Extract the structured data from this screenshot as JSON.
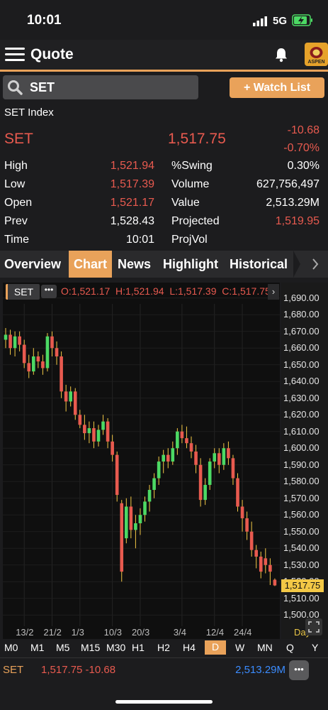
{
  "status_bar": {
    "time": "10:01",
    "network": "5G"
  },
  "header": {
    "title": "Quote",
    "logo_text": "ASPEN"
  },
  "search": {
    "value": "SET"
  },
  "watch_button": {
    "label": "+ Watch List"
  },
  "index_name": "SET Index",
  "quote": {
    "symbol": "SET",
    "last": "1,517.75",
    "change": "-10.68",
    "change_pct": "-0.70%"
  },
  "stats": {
    "high_label": "High",
    "high": "1,521.94",
    "low_label": "Low",
    "low": "1,517.39",
    "open_label": "Open",
    "open": "1,521.17",
    "prev_label": "Prev",
    "prev": "1,528.43",
    "time_label": "Time",
    "time": "10:01",
    "swing_label": "%Swing",
    "swing": "0.30%",
    "volume_label": "Volume",
    "volume": "627,756,497",
    "value_label": "Value",
    "value": "2,513.29M",
    "projected_label": "Projected",
    "projected": "1,519.95",
    "projvol_label": "ProjVol"
  },
  "tabs": [
    "Overview",
    "Chart",
    "News",
    "Highlight",
    "Historical"
  ],
  "chart_legend": {
    "symbol": "SET",
    "ohlc": "O:1,521.17  H:1,521.94  L:1,517.39  C:1,517.75"
  },
  "chart_data": {
    "type": "candlestick",
    "ylim": [
      1495,
      1695
    ],
    "y_ticks": [
      "1,690.00",
      "1,680.00",
      "1,670.00",
      "1,660.00",
      "1,650.00",
      "1,640.00",
      "1,630.00",
      "1,620.00",
      "1,610.00",
      "1,600.00",
      "1,590.00",
      "1,580.00",
      "1,570.00",
      "1,560.00",
      "1,550.00",
      "1,540.00",
      "1,530.00",
      "1,520.00",
      "1,510.00",
      "1,500.00"
    ],
    "y_tick_values": [
      1690,
      1680,
      1670,
      1660,
      1650,
      1640,
      1630,
      1620,
      1610,
      1600,
      1590,
      1580,
      1570,
      1560,
      1550,
      1540,
      1530,
      1520,
      1510,
      1500
    ],
    "x_labels": [
      "13/2",
      "21/2",
      "1/3",
      "10/3",
      "20/3",
      "3/4",
      "12/4",
      "24/4",
      "Day"
    ],
    "x_label_index": [
      4,
      10,
      16,
      23,
      29,
      38,
      45,
      51,
      59
    ],
    "last_price_label": "1,517.75",
    "last_price": 1517.75,
    "candles": [
      {
        "o": 1665,
        "h": 1672,
        "l": 1660,
        "c": 1668
      },
      {
        "o": 1668,
        "h": 1671,
        "l": 1656,
        "c": 1660
      },
      {
        "o": 1660,
        "h": 1670,
        "l": 1655,
        "c": 1667
      },
      {
        "o": 1667,
        "h": 1670,
        "l": 1658,
        "c": 1662
      },
      {
        "o": 1662,
        "h": 1665,
        "l": 1648,
        "c": 1651
      },
      {
        "o": 1651,
        "h": 1656,
        "l": 1642,
        "c": 1646
      },
      {
        "o": 1646,
        "h": 1660,
        "l": 1644,
        "c": 1655
      },
      {
        "o": 1655,
        "h": 1658,
        "l": 1648,
        "c": 1652
      },
      {
        "o": 1652,
        "h": 1656,
        "l": 1644,
        "c": 1648
      },
      {
        "o": 1648,
        "h": 1669,
        "l": 1646,
        "c": 1667
      },
      {
        "o": 1667,
        "h": 1670,
        "l": 1655,
        "c": 1660
      },
      {
        "o": 1660,
        "h": 1664,
        "l": 1650,
        "c": 1655
      },
      {
        "o": 1655,
        "h": 1658,
        "l": 1630,
        "c": 1634
      },
      {
        "o": 1634,
        "h": 1638,
        "l": 1622,
        "c": 1628
      },
      {
        "o": 1628,
        "h": 1637,
        "l": 1625,
        "c": 1634
      },
      {
        "o": 1634,
        "h": 1636,
        "l": 1617,
        "c": 1620
      },
      {
        "o": 1620,
        "h": 1623,
        "l": 1612,
        "c": 1614
      },
      {
        "o": 1614,
        "h": 1620,
        "l": 1605,
        "c": 1609
      },
      {
        "o": 1609,
        "h": 1616,
        "l": 1603,
        "c": 1612
      },
      {
        "o": 1612,
        "h": 1616,
        "l": 1600,
        "c": 1604
      },
      {
        "o": 1604,
        "h": 1614,
        "l": 1601,
        "c": 1611
      },
      {
        "o": 1611,
        "h": 1620,
        "l": 1608,
        "c": 1616
      },
      {
        "o": 1616,
        "h": 1618,
        "l": 1600,
        "c": 1604
      },
      {
        "o": 1604,
        "h": 1608,
        "l": 1592,
        "c": 1596
      },
      {
        "o": 1596,
        "h": 1598,
        "l": 1568,
        "c": 1572
      },
      {
        "o": 1567,
        "h": 1569,
        "l": 1520,
        "c": 1526
      },
      {
        "o": 1546,
        "h": 1570,
        "l": 1543,
        "c": 1565
      },
      {
        "o": 1565,
        "h": 1571,
        "l": 1546,
        "c": 1551
      },
      {
        "o": 1551,
        "h": 1560,
        "l": 1540,
        "c": 1555
      },
      {
        "o": 1555,
        "h": 1564,
        "l": 1548,
        "c": 1560
      },
      {
        "o": 1560,
        "h": 1571,
        "l": 1556,
        "c": 1568
      },
      {
        "o": 1568,
        "h": 1578,
        "l": 1562,
        "c": 1575
      },
      {
        "o": 1575,
        "h": 1585,
        "l": 1570,
        "c": 1582
      },
      {
        "o": 1582,
        "h": 1595,
        "l": 1578,
        "c": 1592
      },
      {
        "o": 1592,
        "h": 1599,
        "l": 1585,
        "c": 1596
      },
      {
        "o": 1596,
        "h": 1600,
        "l": 1588,
        "c": 1592
      },
      {
        "o": 1592,
        "h": 1604,
        "l": 1590,
        "c": 1600
      },
      {
        "o": 1600,
        "h": 1612,
        "l": 1596,
        "c": 1610
      },
      {
        "o": 1610,
        "h": 1614,
        "l": 1603,
        "c": 1606
      },
      {
        "o": 1606,
        "h": 1613,
        "l": 1600,
        "c": 1603
      },
      {
        "o": 1603,
        "h": 1607,
        "l": 1594,
        "c": 1598
      },
      {
        "o": 1598,
        "h": 1602,
        "l": 1585,
        "c": 1590
      },
      {
        "o": 1590,
        "h": 1594,
        "l": 1565,
        "c": 1569
      },
      {
        "o": 1569,
        "h": 1582,
        "l": 1566,
        "c": 1578
      },
      {
        "o": 1578,
        "h": 1594,
        "l": 1575,
        "c": 1592
      },
      {
        "o": 1592,
        "h": 1600,
        "l": 1588,
        "c": 1597
      },
      {
        "o": 1597,
        "h": 1600,
        "l": 1585,
        "c": 1590
      },
      {
        "o": 1590,
        "h": 1603,
        "l": 1587,
        "c": 1600
      },
      {
        "o": 1600,
        "h": 1604,
        "l": 1590,
        "c": 1594
      },
      {
        "o": 1594,
        "h": 1596,
        "l": 1578,
        "c": 1582
      },
      {
        "o": 1582,
        "h": 1585,
        "l": 1562,
        "c": 1565
      },
      {
        "o": 1565,
        "h": 1569,
        "l": 1550,
        "c": 1558
      },
      {
        "o": 1558,
        "h": 1562,
        "l": 1545,
        "c": 1550
      },
      {
        "o": 1550,
        "h": 1556,
        "l": 1535,
        "c": 1539
      },
      {
        "o": 1539,
        "h": 1542,
        "l": 1528,
        "c": 1535
      },
      {
        "o": 1535,
        "h": 1538,
        "l": 1522,
        "c": 1526
      },
      {
        "o": 1534,
        "h": 1540,
        "l": 1525,
        "c": 1530
      },
      {
        "o": 1530,
        "h": 1534,
        "l": 1518,
        "c": 1526
      },
      {
        "o": 1521.17,
        "h": 1521.94,
        "l": 1517.39,
        "c": 1517.75
      }
    ]
  },
  "timeframes": [
    "M0",
    "M1",
    "M5",
    "M15",
    "M30",
    "H1",
    "H2",
    "H4",
    "D",
    "W",
    "MN",
    "Q",
    "Y"
  ],
  "active_timeframe": "D",
  "footer": {
    "symbol": "SET",
    "price_change": "1,517.75 -10.68",
    "value": "2,513.29M"
  },
  "colors": {
    "accent": "#e9a25a",
    "down": "#e85a4f",
    "up": "#4cd964",
    "value_blue": "#3b8cff"
  }
}
